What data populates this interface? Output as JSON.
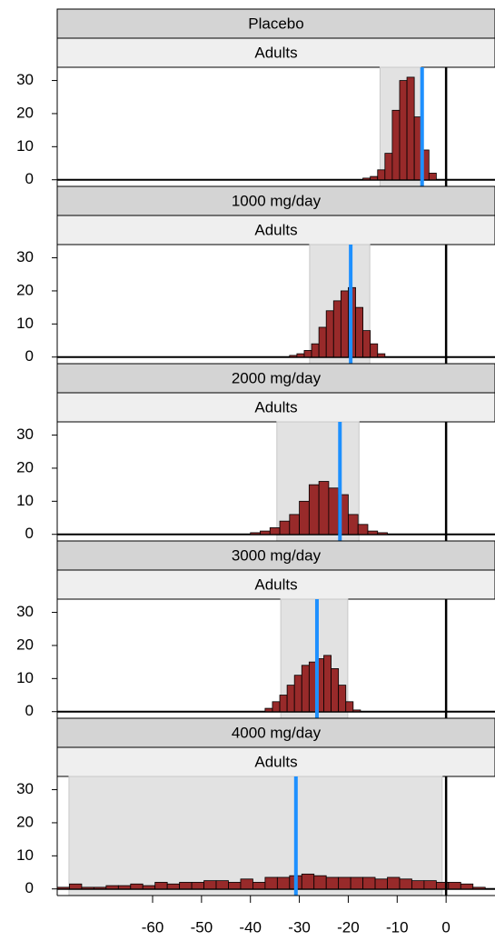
{
  "chart_data": [
    {
      "type": "histogram",
      "title": "Placebo",
      "subtitle": "Adults",
      "bins": [
        -17,
        -15.5,
        -14,
        -12.5,
        -11,
        -9.5,
        -8,
        -6.5,
        -5,
        -3.5,
        -2
      ],
      "counts": [
        0.5,
        1,
        3,
        8,
        21,
        30,
        31,
        19,
        9,
        2
      ],
      "color": "#982a2a",
      "shaded_range": [
        -13.5,
        -5.2
      ],
      "reference_line": -4.9,
      "reference_color": "#1e90ff",
      "vline": 0,
      "xlim": [
        -79.5,
        10
      ],
      "ylim": [
        -2,
        34
      ],
      "yticks": [
        0,
        10,
        20,
        30
      ]
    },
    {
      "type": "histogram",
      "title": "1000 mg/day",
      "subtitle": "Adults",
      "bins": [
        -32,
        -30.5,
        -29,
        -27.5,
        -26,
        -24.5,
        -23,
        -21.5,
        -20,
        -18.5,
        -17,
        -15.5,
        -14,
        -12.5
      ],
      "counts": [
        0.5,
        1,
        2,
        4,
        9,
        14,
        17,
        20,
        21,
        15,
        8,
        4,
        1
      ],
      "color": "#982a2a",
      "shaded_range": [
        -27.9,
        -15.6
      ],
      "reference_line": -19.5,
      "reference_color": "#1e90ff",
      "vline": 0,
      "xlim": [
        -79.5,
        10
      ],
      "ylim": [
        -2,
        34
      ],
      "yticks": [
        0,
        10,
        20,
        30
      ]
    },
    {
      "type": "histogram",
      "title": "2000 mg/day",
      "subtitle": "Adults",
      "bins": [
        -40,
        -38,
        -36,
        -34,
        -32,
        -30,
        -28,
        -26,
        -24,
        -22,
        -20,
        -18,
        -16,
        -14,
        -12
      ],
      "counts": [
        0.5,
        1,
        2,
        4,
        6,
        10,
        15,
        16,
        14,
        12,
        6,
        3,
        1,
        0.5
      ],
      "color": "#982a2a",
      "shaded_range": [
        -34.6,
        -17.8
      ],
      "reference_line": -21.7,
      "reference_color": "#1e90ff",
      "vline": 0,
      "xlim": [
        -79.5,
        10
      ],
      "ylim": [
        -2,
        34
      ],
      "yticks": [
        0,
        10,
        20,
        30
      ]
    },
    {
      "type": "histogram",
      "title": "3000 mg/day",
      "subtitle": "Adults",
      "bins": [
        -37,
        -35.5,
        -34,
        -32.5,
        -31,
        -29.5,
        -28,
        -26.5,
        -25,
        -23.5,
        -22,
        -20.5,
        -19,
        -17.5
      ],
      "counts": [
        1,
        3,
        5,
        8,
        11,
        14,
        15,
        16,
        17,
        13,
        8,
        3,
        0.5
      ],
      "color": "#982a2a",
      "shaded_range": [
        -33.8,
        -20.1
      ],
      "reference_line": -26.4,
      "reference_color": "#1e90ff",
      "vline": 0,
      "xlim": [
        -79.5,
        10
      ],
      "ylim": [
        -2,
        34
      ],
      "yticks": [
        0,
        10,
        20,
        30
      ]
    },
    {
      "type": "histogram",
      "title": "4000 mg/day",
      "subtitle": "Adults",
      "bins": [
        -79.5,
        -77,
        -74.5,
        -72,
        -69.5,
        -67,
        -64.5,
        -62,
        -59.5,
        -57,
        -54.5,
        -52,
        -49.5,
        -47,
        -44.5,
        -42,
        -39.5,
        -37,
        -34.5,
        -32,
        -29.5,
        -27,
        -24.5,
        -22,
        -19.5,
        -17,
        -14.5,
        -12,
        -9.5,
        -7,
        -4.5,
        -2,
        0.5,
        3,
        5.5,
        8
      ],
      "counts": [
        0.5,
        1.5,
        0.5,
        0.5,
        1,
        1,
        1.5,
        1,
        2,
        1.5,
        2,
        2,
        2.5,
        2.5,
        2,
        3,
        2,
        3.5,
        3.5,
        4,
        4.5,
        4,
        3.5,
        3.5,
        3.5,
        3.5,
        3,
        3.5,
        3,
        2.5,
        2.5,
        2,
        2,
        1.5,
        0.5
      ],
      "color": "#982a2a",
      "shaded_range": [
        -77.1,
        -0.8
      ],
      "reference_line": -30.7,
      "reference_color": "#1e90ff",
      "vline": 0,
      "xlim": [
        -79.5,
        10
      ],
      "ylim": [
        -2,
        34
      ],
      "yticks": [
        0,
        10,
        20,
        30
      ],
      "xticks": [
        -60,
        -50,
        -40,
        -30,
        -20,
        -10,
        0
      ]
    }
  ]
}
